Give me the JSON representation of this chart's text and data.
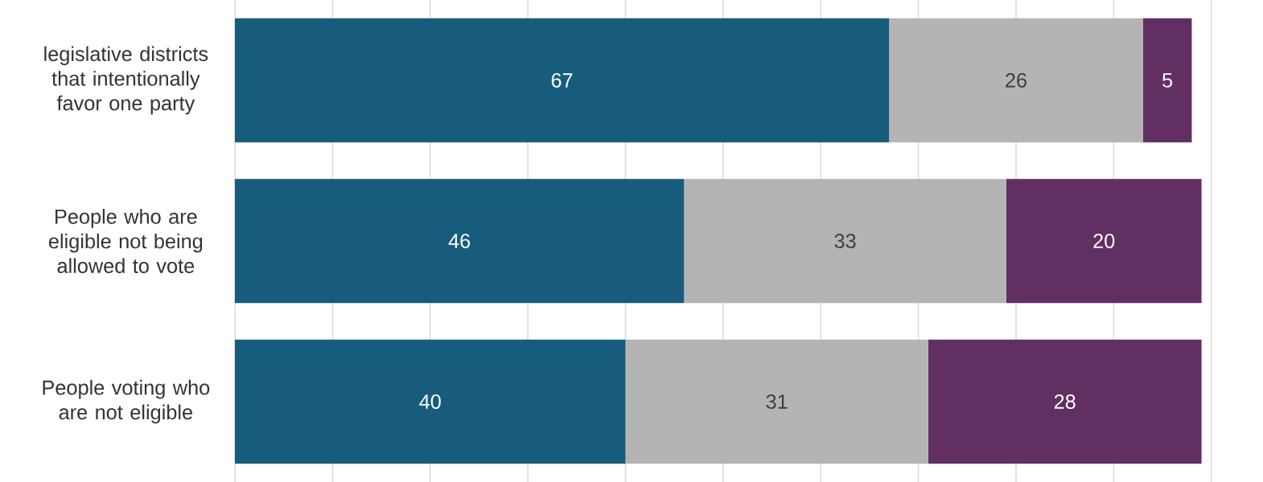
{
  "chart_data": {
    "type": "bar",
    "orientation": "horizontal",
    "stacked": true,
    "data_labels": true,
    "grid": "x",
    "tick_labels": "y",
    "categories": [
      "legislative districts that intentionally favor one party",
      "People who are eligible not being allowed to vote",
      "People voting who are not eligible"
    ],
    "series": [
      {
        "color": "#175c7c",
        "values": [
          67,
          46,
          40
        ]
      },
      {
        "color": "#b4b4b4",
        "values": [
          26,
          33,
          31
        ]
      },
      {
        "color": "#622f63",
        "values": [
          5,
          20,
          28
        ]
      }
    ]
  }
}
